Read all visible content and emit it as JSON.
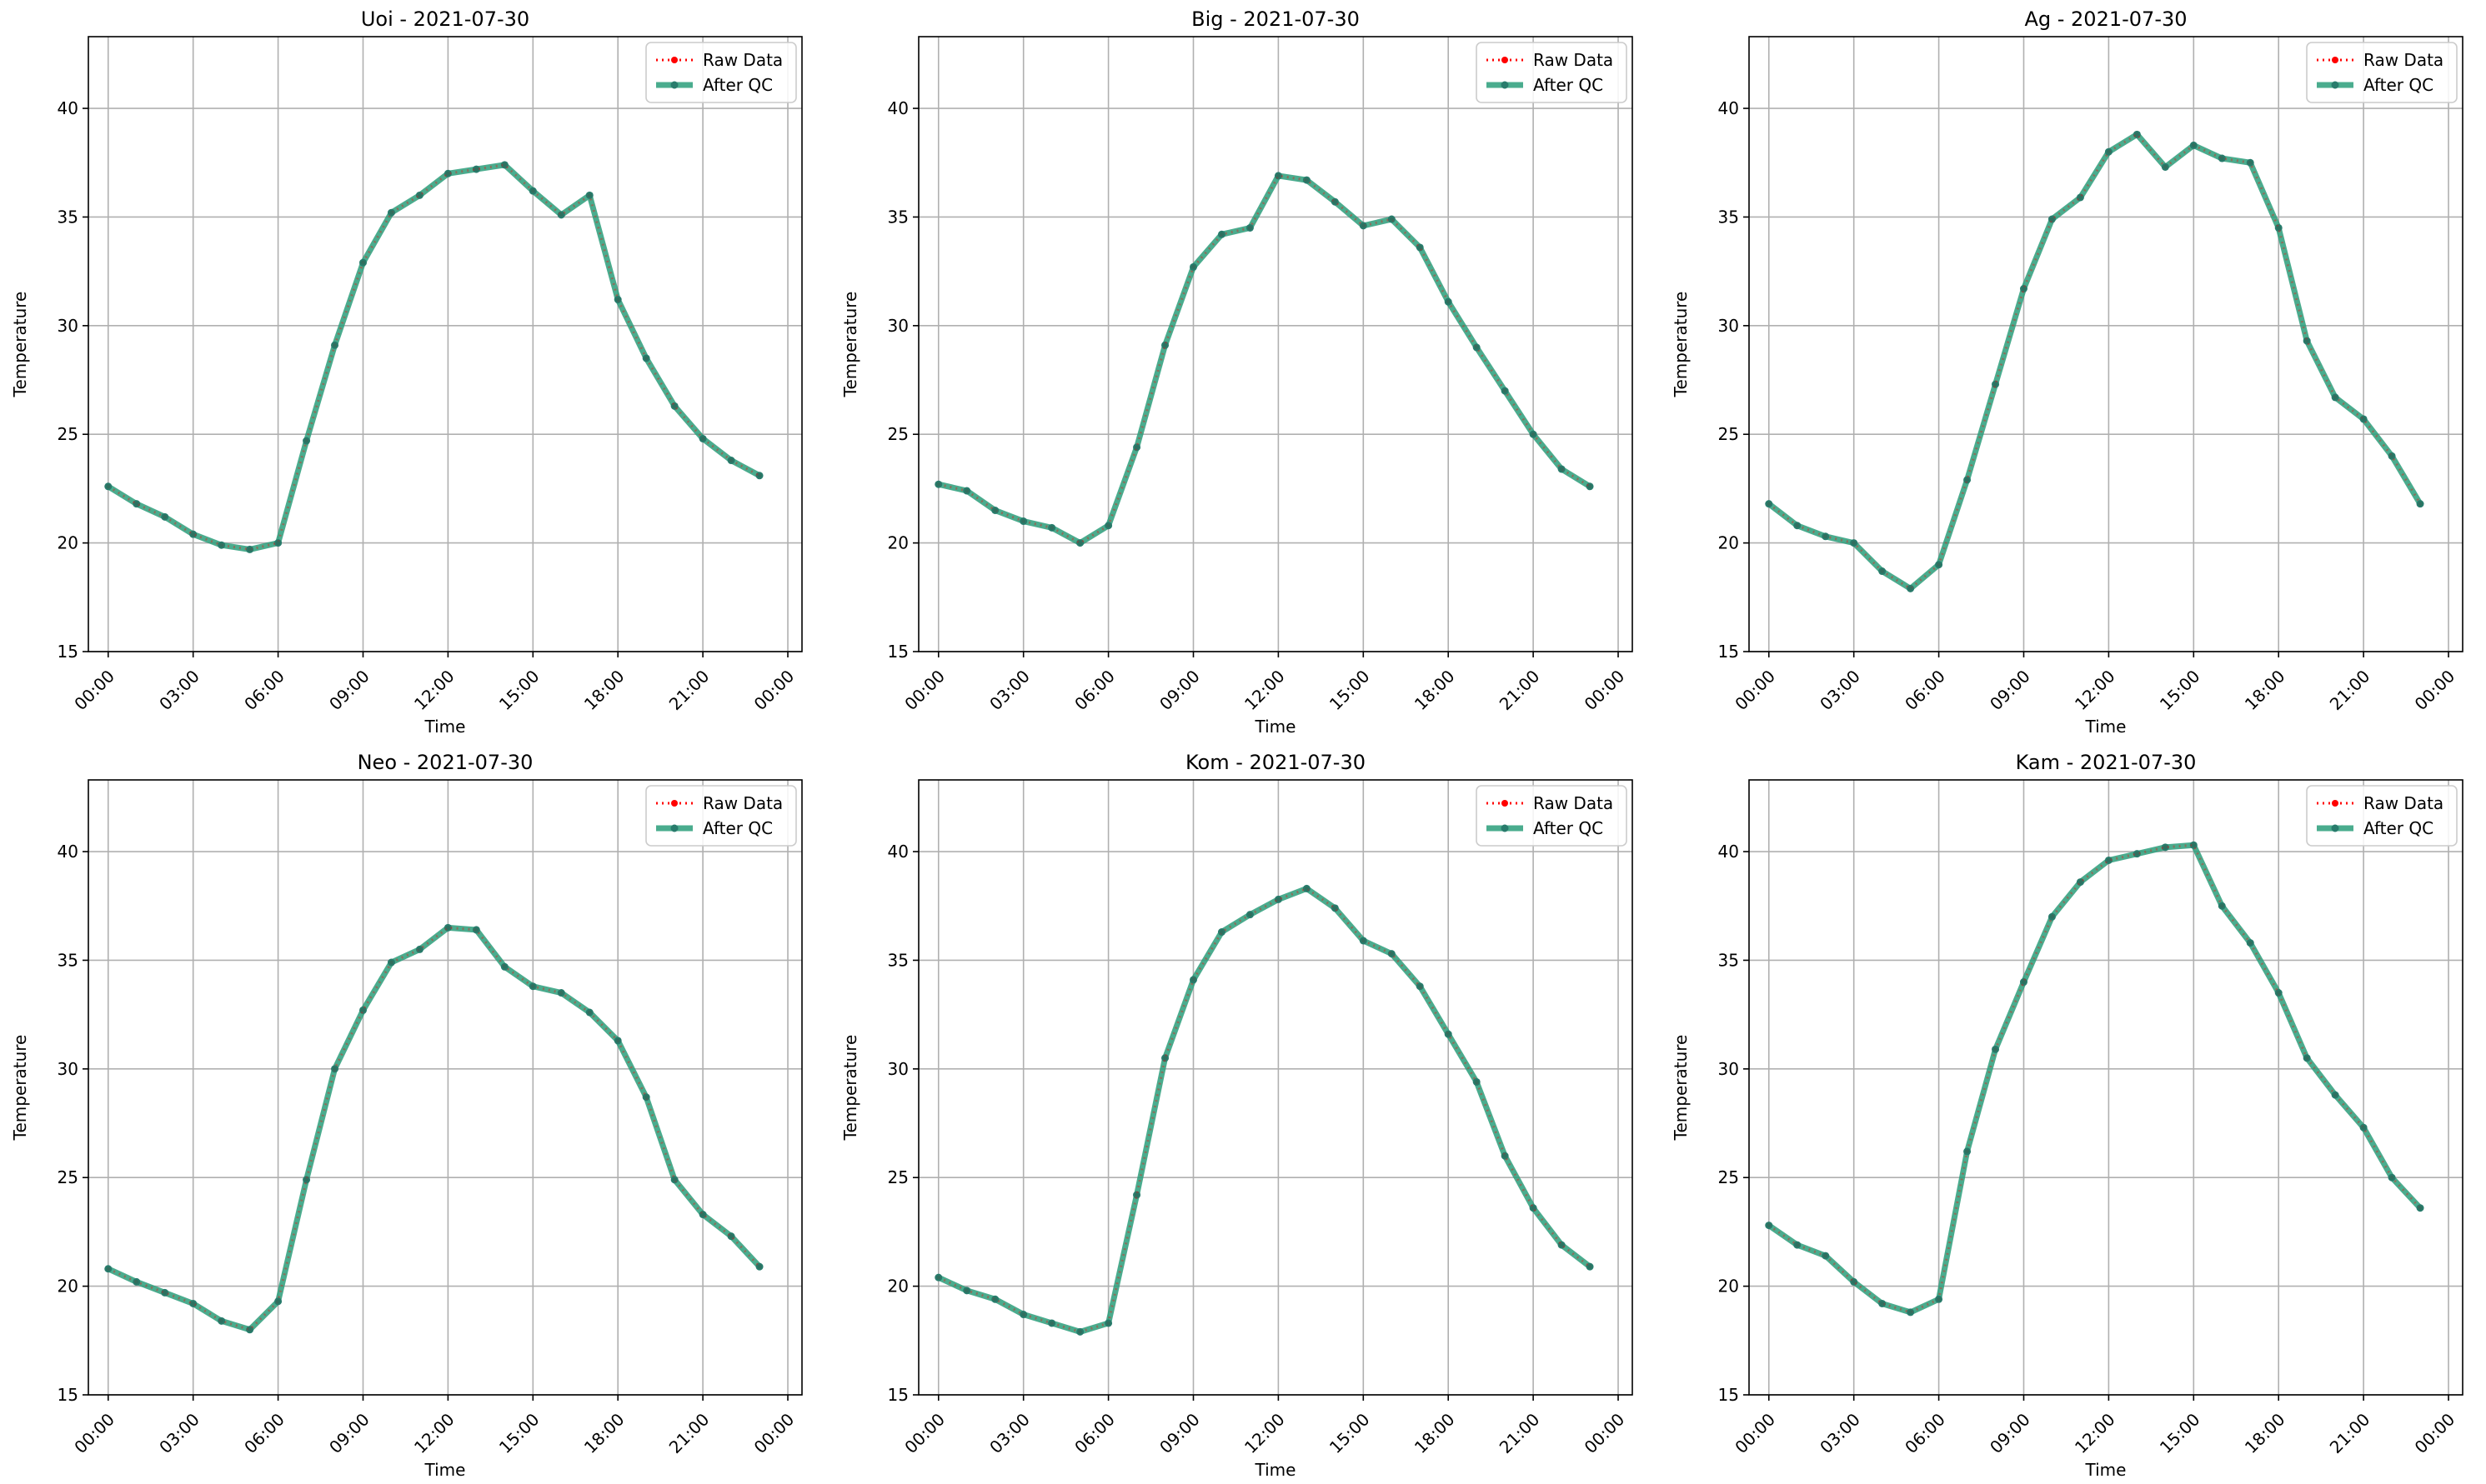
{
  "x_tick_labels": [
    "00:00",
    "03:00",
    "06:00",
    "09:00",
    "12:00",
    "15:00",
    "18:00",
    "21:00",
    "00:00"
  ],
  "y_tick_labels": [
    "15",
    "20",
    "25",
    "30",
    "35",
    "40"
  ],
  "colors": {
    "raw": "#ff0000",
    "qc": "#2a9d7a",
    "qc_marker": "#287c6c",
    "grid": "#b0b0b0"
  },
  "chart_data": [
    {
      "type": "line",
      "title": "Uoi - 2021-07-30",
      "xlabel": "Time",
      "ylabel": "Temperature",
      "x_unit": "hour of day",
      "x": [
        0,
        1,
        2,
        3,
        4,
        5,
        6,
        7,
        8,
        9,
        10,
        11,
        12,
        13,
        14,
        15,
        16,
        17,
        18,
        19,
        20,
        21,
        22,
        23
      ],
      "xlim": [
        -0.7,
        24.5
      ],
      "ylim": [
        15,
        43.3
      ],
      "grid": true,
      "legend_position": "top-right",
      "series": [
        {
          "name": "Raw Data",
          "values": [
            22.6,
            21.8,
            21.2,
            20.4,
            19.9,
            19.7,
            20.0,
            24.7,
            29.1,
            32.9,
            35.2,
            36.0,
            37.0,
            37.2,
            37.4,
            36.2,
            35.1,
            36.0,
            31.2,
            28.5,
            26.3,
            24.8,
            23.8,
            23.1
          ]
        },
        {
          "name": "After QC",
          "values": [
            22.6,
            21.8,
            21.2,
            20.4,
            19.9,
            19.7,
            20.0,
            24.7,
            29.1,
            32.9,
            35.2,
            36.0,
            37.0,
            37.2,
            37.4,
            36.2,
            35.1,
            36.0,
            31.2,
            28.5,
            26.3,
            24.8,
            23.8,
            23.1
          ]
        }
      ]
    },
    {
      "type": "line",
      "title": "Big - 2021-07-30",
      "xlabel": "Time",
      "ylabel": "Temperature",
      "x_unit": "hour of day",
      "x": [
        0,
        1,
        2,
        3,
        4,
        5,
        6,
        7,
        8,
        9,
        10,
        11,
        12,
        13,
        14,
        15,
        16,
        17,
        18,
        19,
        20,
        21,
        22,
        23
      ],
      "xlim": [
        -0.7,
        24.5
      ],
      "ylim": [
        15,
        43.3
      ],
      "grid": true,
      "legend_position": "top-right",
      "series": [
        {
          "name": "Raw Data",
          "values": [
            22.7,
            22.4,
            21.5,
            21.0,
            20.7,
            20.0,
            20.8,
            24.4,
            29.1,
            32.7,
            34.2,
            34.5,
            36.9,
            36.7,
            35.7,
            34.6,
            34.9,
            33.6,
            31.1,
            29.0,
            27.0,
            25.0,
            23.4,
            22.6
          ]
        },
        {
          "name": "After QC",
          "values": [
            22.7,
            22.4,
            21.5,
            21.0,
            20.7,
            20.0,
            20.8,
            24.4,
            29.1,
            32.7,
            34.2,
            34.5,
            36.9,
            36.7,
            35.7,
            34.6,
            34.9,
            33.6,
            31.1,
            29.0,
            27.0,
            25.0,
            23.4,
            22.6
          ]
        }
      ]
    },
    {
      "type": "line",
      "title": "Ag - 2021-07-30",
      "xlabel": "Time",
      "ylabel": "Temperature",
      "x_unit": "hour of day",
      "x": [
        0,
        1,
        2,
        3,
        4,
        5,
        6,
        7,
        8,
        9,
        10,
        11,
        12,
        13,
        14,
        15,
        16,
        17,
        18,
        19,
        20,
        21,
        22,
        23
      ],
      "xlim": [
        -0.7,
        24.5
      ],
      "ylim": [
        15,
        43.3
      ],
      "grid": true,
      "legend_position": "top-right",
      "series": [
        {
          "name": "Raw Data",
          "values": [
            21.8,
            20.8,
            20.3,
            20.0,
            18.7,
            17.9,
            19.0,
            22.9,
            27.3,
            31.7,
            34.9,
            35.9,
            38.0,
            38.8,
            37.3,
            38.3,
            37.7,
            37.5,
            34.5,
            29.3,
            26.7,
            25.7,
            24.0,
            21.8
          ]
        },
        {
          "name": "After QC",
          "values": [
            21.8,
            20.8,
            20.3,
            20.0,
            18.7,
            17.9,
            19.0,
            22.9,
            27.3,
            31.7,
            34.9,
            35.9,
            38.0,
            38.8,
            37.3,
            38.3,
            37.7,
            37.5,
            34.5,
            29.3,
            26.7,
            25.7,
            24.0,
            21.8
          ]
        }
      ]
    },
    {
      "type": "line",
      "title": "Neo - 2021-07-30",
      "xlabel": "Time",
      "ylabel": "Temperature",
      "x_unit": "hour of day",
      "x": [
        0,
        1,
        2,
        3,
        4,
        5,
        6,
        7,
        8,
        9,
        10,
        11,
        12,
        13,
        14,
        15,
        16,
        17,
        18,
        19,
        20,
        21,
        22,
        23
      ],
      "xlim": [
        -0.7,
        24.5
      ],
      "ylim": [
        15,
        43.3
      ],
      "grid": true,
      "legend_position": "top-right",
      "series": [
        {
          "name": "Raw Data",
          "values": [
            20.8,
            20.2,
            19.7,
            19.2,
            18.4,
            18.0,
            19.3,
            24.9,
            30.0,
            32.7,
            34.9,
            35.5,
            36.5,
            36.4,
            34.7,
            33.8,
            33.5,
            32.6,
            31.3,
            28.7,
            24.9,
            23.3,
            22.3,
            20.9
          ]
        },
        {
          "name": "After QC",
          "values": [
            20.8,
            20.2,
            19.7,
            19.2,
            18.4,
            18.0,
            19.3,
            24.9,
            30.0,
            32.7,
            34.9,
            35.5,
            36.5,
            36.4,
            34.7,
            33.8,
            33.5,
            32.6,
            31.3,
            28.7,
            24.9,
            23.3,
            22.3,
            20.9
          ]
        }
      ]
    },
    {
      "type": "line",
      "title": "Kom - 2021-07-30",
      "xlabel": "Time",
      "ylabel": "Temperature",
      "x_unit": "hour of day",
      "x": [
        0,
        1,
        2,
        3,
        4,
        5,
        6,
        7,
        8,
        9,
        10,
        11,
        12,
        13,
        14,
        15,
        16,
        17,
        18,
        19,
        20,
        21,
        22,
        23
      ],
      "xlim": [
        -0.7,
        24.5
      ],
      "ylim": [
        15,
        43.3
      ],
      "grid": true,
      "legend_position": "top-right",
      "series": [
        {
          "name": "Raw Data",
          "values": [
            20.4,
            19.8,
            19.4,
            18.7,
            18.3,
            17.9,
            18.3,
            24.2,
            30.5,
            34.1,
            36.3,
            37.1,
            37.8,
            38.3,
            37.4,
            35.9,
            35.3,
            33.8,
            31.6,
            29.4,
            26.0,
            23.6,
            21.9,
            20.9
          ]
        },
        {
          "name": "After QC",
          "values": [
            20.4,
            19.8,
            19.4,
            18.7,
            18.3,
            17.9,
            18.3,
            24.2,
            30.5,
            34.1,
            36.3,
            37.1,
            37.8,
            38.3,
            37.4,
            35.9,
            35.3,
            33.8,
            31.6,
            29.4,
            26.0,
            23.6,
            21.9,
            20.9
          ]
        }
      ]
    },
    {
      "type": "line",
      "title": "Kam - 2021-07-30",
      "xlabel": "Time",
      "ylabel": "Temperature",
      "x_unit": "hour of day",
      "x": [
        0,
        1,
        2,
        3,
        4,
        5,
        6,
        7,
        8,
        9,
        10,
        11,
        12,
        13,
        14,
        15,
        16,
        17,
        18,
        19,
        20,
        21,
        22,
        23
      ],
      "xlim": [
        -0.7,
        24.5
      ],
      "ylim": [
        15,
        43.3
      ],
      "grid": true,
      "legend_position": "top-right",
      "series": [
        {
          "name": "Raw Data",
          "values": [
            22.8,
            21.9,
            21.4,
            20.2,
            19.2,
            18.8,
            19.4,
            26.2,
            30.9,
            34.0,
            37.0,
            38.6,
            39.6,
            39.9,
            40.2,
            40.3,
            37.5,
            35.8,
            33.5,
            30.5,
            28.8,
            27.3,
            25.0,
            23.6
          ]
        },
        {
          "name": "After QC",
          "values": [
            22.8,
            21.9,
            21.4,
            20.2,
            19.2,
            18.8,
            19.4,
            26.2,
            30.9,
            34.0,
            37.0,
            38.6,
            39.6,
            39.9,
            40.2,
            40.3,
            37.5,
            35.8,
            33.5,
            30.5,
            28.8,
            27.3,
            25.0,
            23.6
          ]
        }
      ]
    }
  ]
}
